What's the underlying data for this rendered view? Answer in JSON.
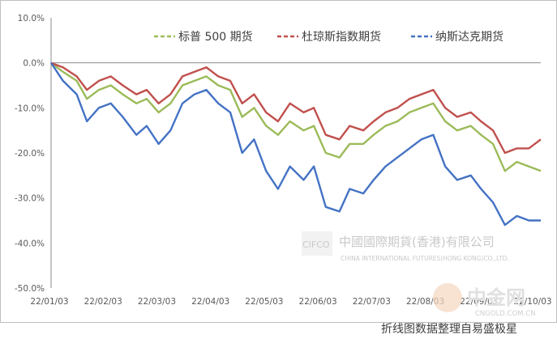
{
  "chart_data": {
    "type": "line",
    "title": "",
    "xlabel": "",
    "ylabel": "",
    "ylim": [
      -50,
      10
    ],
    "y_ticks": [
      "10.0%",
      "0.0%",
      "-10.0%",
      "-20.0%",
      "-30.0%",
      "-40.0%",
      "-50.0%"
    ],
    "x_ticks": [
      "22/01/03",
      "22/02/03",
      "22/03/03",
      "22/04/03",
      "22/05/03",
      "22/06/03",
      "22/07/03",
      "22/08/03",
      "22/09/03",
      "22/10/03"
    ],
    "legend_position": "top-right",
    "grid": false,
    "series": [
      {
        "name": "标普 500 期货",
        "color": "#9bbb59",
        "x": [
          "22/01/03",
          "22/01/10",
          "22/01/18",
          "22/01/24",
          "22/01/31",
          "22/02/07",
          "22/02/14",
          "22/02/22",
          "22/02/28",
          "22/03/07",
          "22/03/14",
          "22/03/21",
          "22/03/28",
          "22/04/04",
          "22/04/11",
          "22/04/18",
          "22/04/25",
          "22/05/02",
          "22/05/09",
          "22/05/16",
          "22/05/23",
          "22/05/31",
          "22/06/06",
          "22/06/13",
          "22/06/21",
          "22/06/27",
          "22/07/05",
          "22/07/11",
          "22/07/18",
          "22/07/25",
          "22/08/01",
          "22/08/08",
          "22/08/15",
          "22/08/22",
          "22/08/29",
          "22/09/06",
          "22/09/12",
          "22/09/19",
          "22/09/26",
          "22/10/03",
          "22/10/10",
          "22/10/17"
        ],
        "values": [
          0,
          -2,
          -4,
          -8,
          -6,
          -5,
          -7,
          -9,
          -8,
          -11,
          -9,
          -5,
          -4,
          -3,
          -5,
          -6,
          -12,
          -10,
          -14,
          -16,
          -13,
          -15,
          -14,
          -20,
          -21,
          -18,
          -18,
          -16,
          -14,
          -13,
          -11,
          -10,
          -9,
          -13,
          -15,
          -14,
          -16,
          -18,
          -24,
          -22,
          -23,
          -24
        ]
      },
      {
        "name": "杜琼斯指数期货",
        "color": "#c0504d",
        "x": [
          "22/01/03",
          "22/01/10",
          "22/01/18",
          "22/01/24",
          "22/01/31",
          "22/02/07",
          "22/02/14",
          "22/02/22",
          "22/02/28",
          "22/03/07",
          "22/03/14",
          "22/03/21",
          "22/03/28",
          "22/04/04",
          "22/04/11",
          "22/04/18",
          "22/04/25",
          "22/05/02",
          "22/05/09",
          "22/05/16",
          "22/05/23",
          "22/05/31",
          "22/06/06",
          "22/06/13",
          "22/06/21",
          "22/06/27",
          "22/07/05",
          "22/07/11",
          "22/07/18",
          "22/07/25",
          "22/08/01",
          "22/08/08",
          "22/08/15",
          "22/08/22",
          "22/08/29",
          "22/09/06",
          "22/09/12",
          "22/09/19",
          "22/09/26",
          "22/10/03",
          "22/10/10",
          "22/10/17"
        ],
        "values": [
          0,
          -1,
          -3,
          -6,
          -4,
          -3,
          -5,
          -7,
          -6,
          -9,
          -7,
          -3,
          -2,
          -1,
          -3,
          -4,
          -9,
          -7,
          -11,
          -13,
          -9,
          -11,
          -10,
          -16,
          -17,
          -14,
          -15,
          -13,
          -11,
          -10,
          -8,
          -7,
          -6,
          -10,
          -12,
          -11,
          -13,
          -15,
          -20,
          -19,
          -19,
          -17
        ]
      },
      {
        "name": "纳斯达克期货",
        "color": "#4472c4",
        "x": [
          "22/01/03",
          "22/01/10",
          "22/01/18",
          "22/01/24",
          "22/01/31",
          "22/02/07",
          "22/02/14",
          "22/02/22",
          "22/02/28",
          "22/03/07",
          "22/03/14",
          "22/03/21",
          "22/03/28",
          "22/04/04",
          "22/04/11",
          "22/04/18",
          "22/04/25",
          "22/05/02",
          "22/05/09",
          "22/05/16",
          "22/05/23",
          "22/05/31",
          "22/06/06",
          "22/06/13",
          "22/06/21",
          "22/06/27",
          "22/07/05",
          "22/07/11",
          "22/07/18",
          "22/07/25",
          "22/08/01",
          "22/08/08",
          "22/08/15",
          "22/08/22",
          "22/08/29",
          "22/09/06",
          "22/09/12",
          "22/09/19",
          "22/09/26",
          "22/10/03",
          "22/10/10",
          "22/10/17"
        ],
        "values": [
          0,
          -4,
          -7,
          -13,
          -10,
          -9,
          -12,
          -16,
          -14,
          -18,
          -15,
          -9,
          -7,
          -6,
          -9,
          -11,
          -20,
          -17,
          -24,
          -28,
          -23,
          -26,
          -23,
          -32,
          -33,
          -28,
          -29,
          -26,
          -23,
          -21,
          -19,
          -17,
          -16,
          -23,
          -26,
          -25,
          -28,
          -31,
          -36,
          -34,
          -35,
          -35
        ]
      }
    ]
  },
  "watermark": {
    "logo_text": "CIFCO",
    "company_cn": "中國國際期貨(香港)有限公司",
    "company_en": "CHINA INTERNATIONAL FUTURES(HONG KONG)CO.,LTD.",
    "site_cn": "中金网",
    "site_url": "CNGOLD.COM.CN"
  },
  "footer_text": "折线图数据整理自易盛极星"
}
